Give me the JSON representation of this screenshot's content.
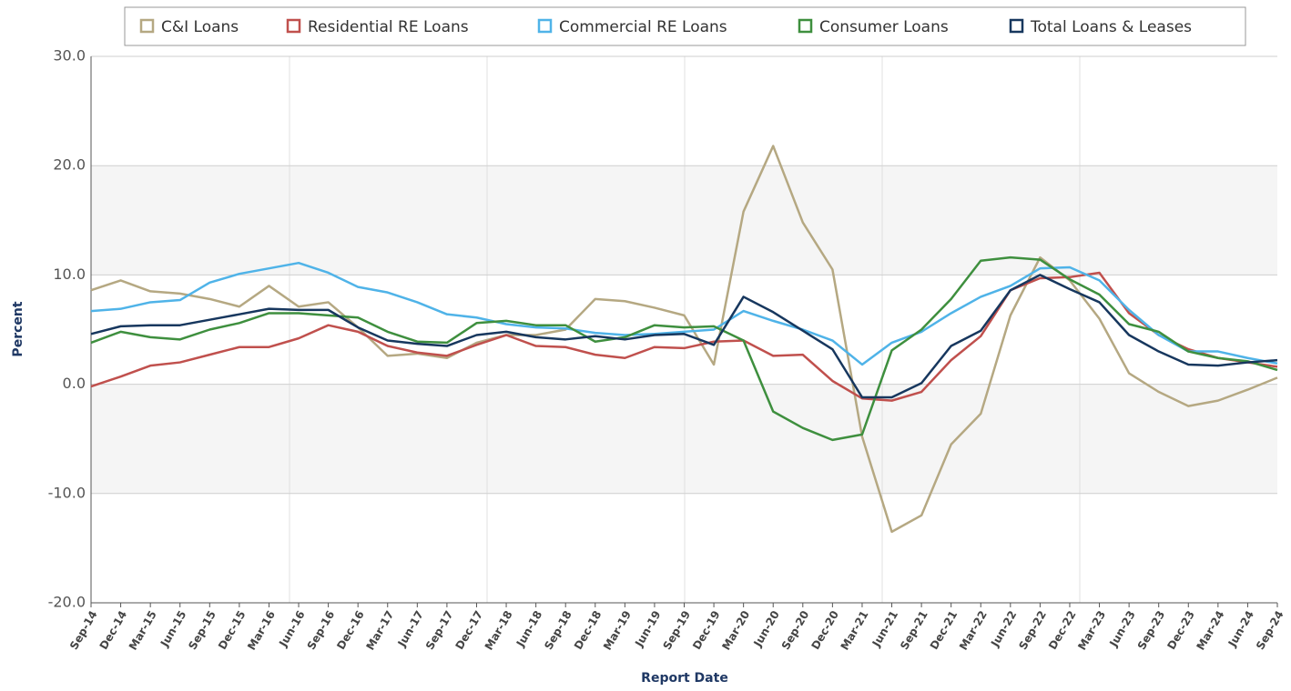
{
  "chart_data": {
    "type": "line",
    "categories": [
      "Sep-14",
      "Dec-14",
      "Mar-15",
      "Jun-15",
      "Sep-15",
      "Dec-15",
      "Mar-16",
      "Jun-16",
      "Sep-16",
      "Dec-16",
      "Mar-17",
      "Jun-17",
      "Sep-17",
      "Dec-17",
      "Mar-18",
      "Jun-18",
      "Sep-18",
      "Dec-18",
      "Mar-19",
      "Jun-19",
      "Sep-19",
      "Dec-19",
      "Mar-20",
      "Jun-20",
      "Sep-20",
      "Dec-20",
      "Mar-21",
      "Jun-21",
      "Sep-21",
      "Dec-21",
      "Mar-22",
      "Jun-22",
      "Sep-22",
      "Dec-22",
      "Mar-23",
      "Jun-23",
      "Sep-23",
      "Dec-23",
      "Mar-24",
      "Jun-24",
      "Sep-24"
    ],
    "series": [
      {
        "name": "C&I Loans",
        "color": "#b5a882",
        "values": [
          8.6,
          9.5,
          8.5,
          8.3,
          7.8,
          7.1,
          9.0,
          7.1,
          7.5,
          5.2,
          2.6,
          2.8,
          2.4,
          3.8,
          4.5,
          4.5,
          5.0,
          7.8,
          7.6,
          7.0,
          6.3,
          1.8,
          15.8,
          21.8,
          14.8,
          10.5,
          -4.8,
          -13.5,
          -12.0,
          -5.5,
          -2.7,
          6.3,
          11.6,
          9.5,
          6.0,
          1.0,
          -0.7,
          -2.0,
          -1.5,
          -0.5,
          0.6
        ]
      },
      {
        "name": "Residential RE Loans",
        "color": "#c0504d",
        "values": [
          -0.2,
          0.7,
          1.7,
          2.0,
          2.7,
          3.4,
          3.4,
          4.2,
          5.4,
          4.8,
          3.5,
          2.9,
          2.6,
          3.6,
          4.5,
          3.5,
          3.4,
          2.7,
          2.4,
          3.4,
          3.3,
          3.9,
          4.0,
          2.6,
          2.7,
          0.3,
          -1.3,
          -1.5,
          -0.7,
          2.2,
          4.4,
          8.6,
          9.7,
          9.8,
          10.2,
          6.5,
          4.5,
          3.2,
          2.4,
          2.0,
          1.6
        ]
      },
      {
        "name": "Commercial RE Loans",
        "color": "#4fb3e8",
        "values": [
          6.7,
          6.9,
          7.5,
          7.7,
          9.3,
          10.1,
          10.6,
          11.1,
          10.2,
          8.9,
          8.4,
          7.5,
          6.4,
          6.1,
          5.5,
          5.2,
          5.1,
          4.7,
          4.5,
          4.6,
          4.8,
          5.0,
          6.7,
          5.8,
          5.0,
          4.0,
          1.8,
          3.8,
          4.8,
          6.5,
          8.0,
          9.0,
          10.6,
          10.7,
          9.5,
          6.8,
          4.5,
          3.0,
          3.0,
          2.4,
          1.9
        ]
      },
      {
        "name": "Consumer Loans",
        "color": "#3e8f3e",
        "values": [
          3.8,
          4.8,
          4.3,
          4.1,
          5.0,
          5.6,
          6.5,
          6.5,
          6.3,
          6.1,
          4.8,
          3.9,
          3.8,
          5.6,
          5.8,
          5.4,
          5.4,
          3.9,
          4.3,
          5.4,
          5.2,
          5.3,
          4.0,
          -2.5,
          -4.0,
          -5.1,
          -4.6,
          3.1,
          5.0,
          7.8,
          11.3,
          11.6,
          11.4,
          9.6,
          8.2,
          5.5,
          4.8,
          3.0,
          2.4,
          2.1,
          1.3
        ]
      },
      {
        "name": "Total Loans & Leases",
        "color": "#17375e",
        "values": [
          4.6,
          5.3,
          5.4,
          5.4,
          5.9,
          6.4,
          6.9,
          6.8,
          6.8,
          5.2,
          4.0,
          3.7,
          3.5,
          4.5,
          4.8,
          4.3,
          4.1,
          4.4,
          4.1,
          4.5,
          4.6,
          3.6,
          8.0,
          6.6,
          4.9,
          3.2,
          -1.2,
          -1.2,
          0.1,
          3.5,
          4.9,
          8.6,
          10.0,
          8.7,
          7.5,
          4.5,
          3.0,
          1.8,
          1.7,
          2.0,
          2.2
        ]
      }
    ],
    "ylim": [
      -20,
      30
    ],
    "yticks": [
      {
        "value": -20,
        "label": "-20.0"
      },
      {
        "value": -10,
        "label": "-10.0"
      },
      {
        "value": 0,
        "label": "0.0"
      },
      {
        "value": 10,
        "label": "10.0"
      },
      {
        "value": 20,
        "label": "20.0"
      },
      {
        "value": 30,
        "label": "30.0"
      }
    ],
    "y_label": "Percent",
    "x_label": "Report Date",
    "grid": true
  }
}
